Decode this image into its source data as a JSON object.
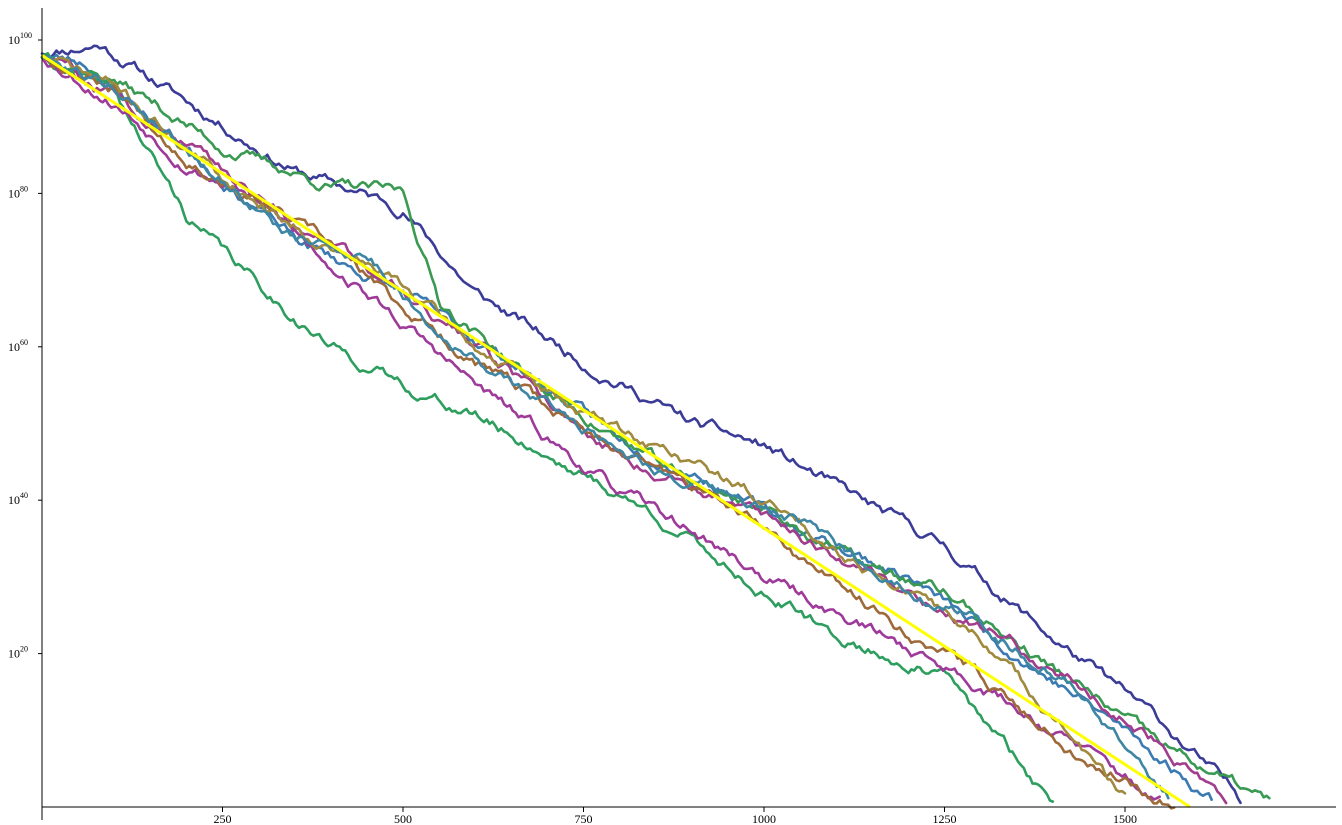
{
  "chart_data": {
    "type": "line",
    "title": "",
    "xlabel": "",
    "ylabel": "",
    "y_scale": "log10",
    "xlim": [
      0,
      1750
    ],
    "ylim": [
      0,
      101
    ],
    "x_ticks": [
      250,
      500,
      750,
      1000,
      1250,
      1500
    ],
    "y_ticks": [
      {
        "base": "10",
        "exp": "20",
        "log10_value": 20
      },
      {
        "base": "10",
        "exp": "40",
        "log10_value": 40
      },
      {
        "base": "10",
        "exp": "60",
        "log10_value": 60
      },
      {
        "base": "10",
        "exp": "80",
        "log10_value": 80
      },
      {
        "base": "10",
        "exp": "100",
        "log10_value": 100
      }
    ],
    "grid": false,
    "legend": "none",
    "reference_line": {
      "color": "#ffff00",
      "x": [
        0,
        1590
      ],
      "log10_y": [
        98,
        0
      ]
    },
    "series": [
      {
        "color": "#3b3b98",
        "x": [
          0,
          80,
          200,
          350,
          500,
          600,
          750,
          900,
          1000,
          1150,
          1250,
          1400,
          1550,
          1660
        ],
        "log10_y": [
          98.5,
          99.5,
          92,
          83,
          78,
          67,
          58,
          50,
          47,
          39,
          34,
          22,
          11,
          1
        ],
        "seed": 11
      },
      {
        "color": "#3c7ab2",
        "x": [
          0,
          60,
          200,
          350,
          500,
          650,
          800,
          900,
          1050,
          1200,
          1350,
          1500,
          1620
        ],
        "log10_y": [
          98,
          97,
          86,
          74,
          67,
          58,
          48,
          44,
          36,
          30,
          20,
          10,
          1
        ],
        "seed": 23
      },
      {
        "color": "#3a9a52",
        "x": [
          0,
          100,
          250,
          400,
          500,
          550,
          700,
          900,
          1000,
          1150,
          1250,
          1400,
          1550,
          1700
        ],
        "log10_y": [
          98,
          95,
          86,
          81,
          80,
          66,
          54,
          42,
          39,
          31,
          28,
          18,
          8,
          0.5
        ],
        "seed": 37
      },
      {
        "color": "#2e9e5e",
        "x": [
          0,
          100,
          200,
          300,
          400,
          500,
          600,
          700,
          850,
          1000,
          1100,
          1250,
          1400
        ],
        "log10_y": [
          98,
          93,
          77,
          68,
          60,
          55,
          51,
          46,
          38,
          28,
          22,
          17,
          0.5
        ],
        "seed": 41
      },
      {
        "color": "#9e3a9a",
        "x": [
          0,
          100,
          200,
          300,
          400,
          500,
          600,
          700,
          800,
          900,
          1000,
          1150,
          1300,
          1450,
          1550
        ],
        "log10_y": [
          98,
          92,
          84,
          79,
          71,
          63,
          55,
          48,
          41,
          36,
          30,
          23,
          16,
          7,
          0.5
        ],
        "seed": 53
      },
      {
        "color": "#a13d8c",
        "x": [
          0,
          100,
          250,
          400,
          500,
          600,
          700,
          800,
          900,
          1000,
          1100,
          1200,
          1350,
          1500,
          1640
        ],
        "log10_y": [
          98,
          93,
          83,
          73,
          68,
          60,
          53,
          46,
          42,
          38,
          33,
          28,
          21,
          12,
          1
        ],
        "seed": 59
      },
      {
        "color": "#9e6a3a",
        "x": [
          0,
          100,
          200,
          300,
          400,
          500,
          600,
          700,
          800,
          900,
          1000,
          1100,
          1200,
          1300,
          1450,
          1570
        ],
        "log10_y": [
          98,
          94,
          85,
          79,
          73,
          65,
          58,
          52,
          47,
          42,
          36,
          29,
          23,
          17,
          6,
          0.5
        ],
        "seed": 67
      },
      {
        "color": "#a08a3e",
        "x": [
          0,
          100,
          250,
          400,
          500,
          600,
          700,
          800,
          900,
          1000,
          1100,
          1200,
          1300,
          1400,
          1500
        ],
        "log10_y": [
          98,
          94,
          82,
          73,
          68,
          60,
          54,
          49,
          45,
          40,
          34,
          28,
          22,
          12,
          1
        ],
        "seed": 71
      },
      {
        "color": "#3d86a4",
        "x": [
          0,
          100,
          200,
          350,
          450,
          550,
          650,
          800,
          900,
          1050,
          1150,
          1300,
          1450,
          1560
        ],
        "log10_y": [
          98,
          94,
          86,
          74,
          72,
          62,
          55,
          47,
          42,
          37,
          31,
          24,
          14,
          1
        ],
        "seed": 79
      }
    ]
  }
}
